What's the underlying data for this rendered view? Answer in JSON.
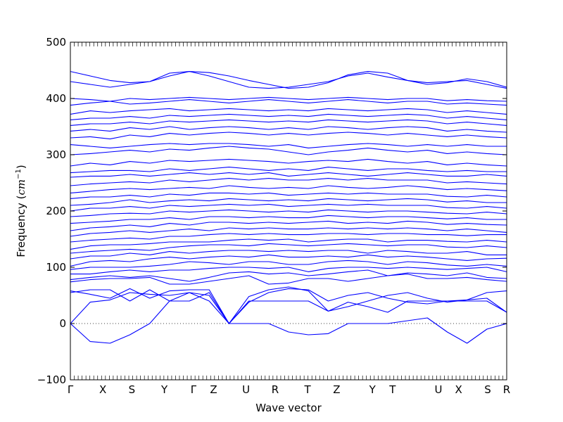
{
  "chart_data": {
    "type": "line",
    "title": "",
    "xlabel": "Wave vector",
    "ylabel_text": "Frequency",
    "ylabel_unit_base": "cm",
    "ylabel_unit_exp": "−1",
    "ylim": [
      -100,
      500
    ],
    "yticks": [
      -100,
      0,
      100,
      200,
      300,
      400,
      500
    ],
    "grid": false,
    "zero_line": {
      "y": 0,
      "style": "dotted",
      "color": "#000000"
    },
    "series_color": "#0000ff",
    "x_range": [
      0,
      7.8
    ],
    "kpoints": [
      {
        "label": "Γ",
        "x": 0.0
      },
      {
        "label": "X",
        "x": 0.58
      },
      {
        "label": "S",
        "x": 1.1
      },
      {
        "label": "Y",
        "x": 1.68
      },
      {
        "label": "Γ",
        "x": 2.2
      },
      {
        "label": "Z",
        "x": 2.56
      },
      {
        "label": "U",
        "x": 3.14
      },
      {
        "label": "R",
        "x": 3.66
      },
      {
        "label": "T",
        "x": 4.24
      },
      {
        "label": "Z",
        "x": 4.76
      },
      {
        "label": "Y",
        "x": 5.4
      },
      {
        "label": "T",
        "x": 5.76
      },
      {
        "label": "U",
        "x": 6.58
      },
      {
        "label": "X",
        "x": 6.94
      },
      {
        "label": "S",
        "x": 7.46
      },
      {
        "label": "R",
        "x": 7.8
      }
    ],
    "series": [
      {
        "values": [
          0,
          -32,
          -35,
          -20,
          0,
          40,
          55,
          40,
          0,
          0,
          0,
          -15,
          -20,
          -18,
          0,
          0,
          0,
          5,
          10,
          -15,
          -35,
          -10,
          0
        ]
      },
      {
        "values": [
          0,
          38,
          42,
          55,
          52,
          50,
          55,
          50,
          0,
          48,
          60,
          65,
          58,
          22,
          30,
          40,
          50,
          55,
          45,
          38,
          42,
          45,
          20
        ]
      },
      {
        "values": [
          55,
          60,
          60,
          40,
          60,
          40,
          40,
          55,
          0,
          40,
          40,
          40,
          40,
          22,
          38,
          30,
          20,
          40,
          40,
          40,
          40,
          40,
          20
        ]
      },
      {
        "values": [
          58,
          52,
          45,
          62,
          45,
          58,
          60,
          60,
          0,
          38,
          55,
          62,
          60,
          40,
          50,
          55,
          45,
          38,
          35,
          40,
          42,
          55,
          58
        ]
      },
      {
        "values": [
          74,
          78,
          80,
          80,
          82,
          70,
          70,
          75,
          80,
          85,
          70,
          72,
          80,
          80,
          75,
          80,
          85,
          88,
          80,
          80,
          82,
          78,
          75
        ]
      },
      {
        "values": [
          78,
          82,
          85,
          82,
          85,
          80,
          75,
          82,
          90,
          92,
          88,
          90,
          85,
          88,
          92,
          95,
          85,
          90,
          88,
          85,
          90,
          82,
          80
        ]
      },
      {
        "values": [
          88,
          88,
          92,
          95,
          92,
          95,
          95,
          98,
          100,
          100,
          98,
          100,
          92,
          98,
          100,
          100,
          98,
          100,
          98,
          96,
          98,
          100,
          92
        ]
      },
      {
        "values": [
          96,
          100,
          100,
          100,
          102,
          105,
          110,
          108,
          105,
          110,
          110,
          105,
          105,
          110,
          112,
          110,
          105,
          110,
          108,
          104,
          102,
          105,
          102
        ]
      },
      {
        "values": [
          102,
          110,
          112,
          110,
          115,
          118,
          115,
          118,
          120,
          118,
          122,
          118,
          118,
          120,
          118,
          122,
          118,
          120,
          118,
          115,
          112,
          115,
          116
        ]
      },
      {
        "values": [
          115,
          120,
          120,
          125,
          122,
          128,
          125,
          128,
          130,
          130,
          128,
          130,
          128,
          130,
          130,
          125,
          130,
          128,
          125,
          125,
          128,
          122,
          122
        ]
      },
      {
        "values": [
          125,
          128,
          130,
          132,
          130,
          135,
          138,
          140,
          140,
          138,
          142,
          140,
          138,
          140,
          142,
          140,
          138,
          140,
          140,
          136,
          135,
          138,
          135
        ]
      },
      {
        "values": [
          132,
          138,
          140,
          140,
          142,
          145,
          145,
          145,
          148,
          150,
          148,
          150,
          145,
          148,
          150,
          150,
          145,
          148,
          148,
          146,
          145,
          148,
          145
        ]
      },
      {
        "values": [
          145,
          148,
          150,
          152,
          150,
          155,
          155,
          158,
          160,
          158,
          160,
          158,
          158,
          160,
          160,
          158,
          160,
          160,
          158,
          158,
          156,
          158,
          158
        ]
      },
      {
        "values": [
          155,
          160,
          162,
          165,
          162,
          165,
          168,
          165,
          170,
          168,
          170,
          168,
          168,
          170,
          168,
          170,
          168,
          170,
          168,
          165,
          168,
          165,
          162
        ]
      },
      {
        "values": [
          165,
          170,
          172,
          175,
          172,
          178,
          175,
          180,
          180,
          178,
          180,
          178,
          180,
          182,
          178,
          180,
          178,
          182,
          180,
          176,
          178,
          176,
          175
        ]
      },
      {
        "values": [
          178,
          180,
          182,
          185,
          185,
          188,
          185,
          190,
          190,
          188,
          190,
          188,
          188,
          192,
          190,
          188,
          190,
          190,
          188,
          186,
          188,
          185,
          185
        ]
      },
      {
        "values": [
          190,
          192,
          195,
          196,
          195,
          200,
          198,
          200,
          202,
          200,
          198,
          200,
          198,
          202,
          200,
          198,
          200,
          200,
          198,
          196,
          195,
          198,
          195
        ]
      },
      {
        "values": [
          200,
          205,
          205,
          208,
          205,
          210,
          208,
          210,
          212,
          210,
          212,
          208,
          210,
          212,
          210,
          212,
          210,
          210,
          210,
          206,
          205,
          208,
          205
        ]
      },
      {
        "values": [
          210,
          212,
          215,
          220,
          215,
          218,
          220,
          218,
          222,
          220,
          218,
          220,
          218,
          222,
          220,
          218,
          220,
          222,
          220,
          216,
          218,
          215,
          215
        ]
      },
      {
        "values": [
          222,
          225,
          225,
          228,
          225,
          230,
          228,
          232,
          232,
          230,
          232,
          228,
          230,
          232,
          230,
          232,
          230,
          230,
          230,
          226,
          225,
          228,
          225
        ]
      },
      {
        "values": [
          232,
          235,
          238,
          240,
          238,
          240,
          242,
          240,
          245,
          242,
          240,
          242,
          240,
          245,
          242,
          240,
          242,
          245,
          242,
          238,
          240,
          238,
          236
        ]
      },
      {
        "values": [
          245,
          248,
          250,
          252,
          250,
          255,
          252,
          255,
          258,
          255,
          258,
          255,
          255,
          258,
          255,
          258,
          255,
          255,
          255,
          250,
          252,
          250,
          248
        ]
      },
      {
        "values": [
          260,
          262,
          262,
          265,
          262,
          265,
          268,
          265,
          268,
          265,
          268,
          262,
          265,
          268,
          265,
          262,
          265,
          268,
          265,
          262,
          262,
          265,
          262
        ]
      },
      {
        "values": [
          268,
          270,
          272,
          272,
          270,
          275,
          272,
          275,
          278,
          275,
          272,
          275,
          272,
          278,
          275,
          272,
          275,
          275,
          272,
          270,
          272,
          270,
          270
        ]
      },
      {
        "values": [
          280,
          285,
          282,
          288,
          285,
          290,
          288,
          290,
          292,
          290,
          288,
          285,
          288,
          290,
          288,
          292,
          288,
          285,
          288,
          282,
          285,
          282,
          280
        ]
      },
      {
        "values": [
          300,
          302,
          305,
          308,
          305,
          310,
          308,
          312,
          315,
          312,
          310,
          305,
          300,
          305,
          308,
          312,
          308,
          305,
          308,
          302,
          305,
          302,
          300
        ]
      },
      {
        "values": [
          318,
          315,
          312,
          315,
          318,
          320,
          318,
          320,
          320,
          318,
          315,
          318,
          312,
          315,
          318,
          320,
          318,
          315,
          318,
          315,
          318,
          315,
          315
        ]
      },
      {
        "values": [
          330,
          332,
          328,
          335,
          332,
          338,
          335,
          338,
          340,
          338,
          335,
          338,
          335,
          338,
          340,
          338,
          335,
          338,
          335,
          332,
          335,
          332,
          330
        ]
      },
      {
        "values": [
          342,
          345,
          342,
          348,
          345,
          350,
          345,
          348,
          350,
          348,
          345,
          348,
          345,
          350,
          348,
          345,
          348,
          350,
          348,
          342,
          345,
          342,
          340
        ]
      },
      {
        "values": [
          352,
          355,
          355,
          358,
          355,
          360,
          358,
          360,
          362,
          360,
          358,
          360,
          358,
          362,
          360,
          358,
          360,
          362,
          360,
          355,
          358,
          355,
          352
        ]
      },
      {
        "values": [
          362,
          365,
          365,
          368,
          365,
          370,
          368,
          370,
          372,
          370,
          368,
          370,
          368,
          372,
          370,
          368,
          370,
          372,
          370,
          365,
          368,
          365,
          362
        ]
      },
      {
        "values": [
          372,
          378,
          375,
          378,
          380,
          382,
          378,
          380,
          382,
          380,
          378,
          380,
          378,
          382,
          380,
          378,
          380,
          382,
          380,
          375,
          378,
          375,
          372
        ]
      },
      {
        "values": [
          388,
          392,
          395,
          390,
          392,
          395,
          398,
          395,
          392,
          395,
          398,
          395,
          392,
          395,
          398,
          395,
          392,
          395,
          395,
          390,
          392,
          390,
          388
        ]
      },
      {
        "values": [
          400,
          398,
          395,
          400,
          398,
          400,
          402,
          400,
          398,
          400,
          402,
          400,
          398,
          400,
          402,
          400,
          398,
          400,
          400,
          396,
          398,
          396,
          395
        ]
      },
      {
        "values": [
          430,
          425,
          420,
          425,
          430,
          445,
          448,
          440,
          430,
          420,
          418,
          420,
          425,
          430,
          440,
          445,
          438,
          432,
          428,
          430,
          432,
          425,
          418
        ]
      },
      {
        "values": [
          448,
          440,
          432,
          428,
          430,
          440,
          448,
          446,
          440,
          432,
          425,
          418,
          420,
          428,
          442,
          448,
          445,
          432,
          425,
          428,
          435,
          430,
          420
        ]
      }
    ]
  }
}
